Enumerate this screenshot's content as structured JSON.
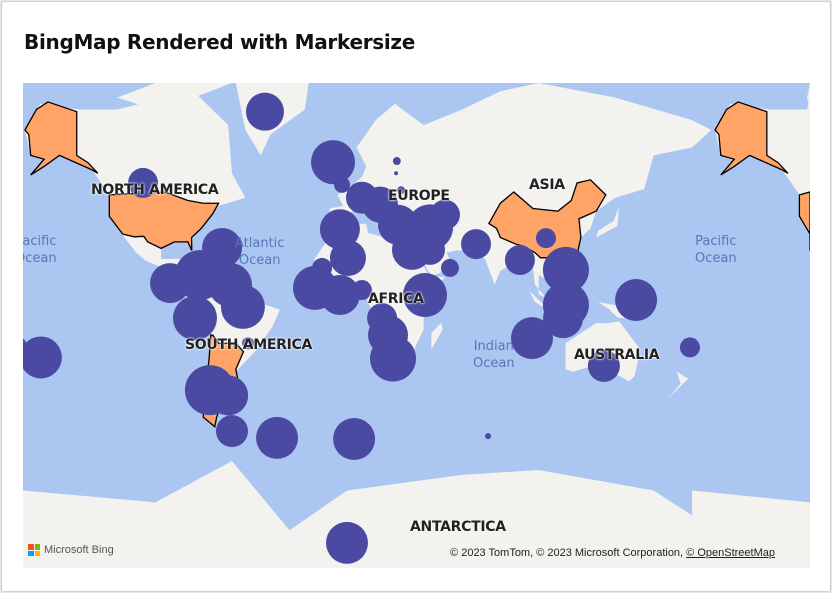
{
  "title": "BingMap Rendered with Markersize",
  "map": {
    "continent_labels": [
      "NORTH AMERICA",
      "EUROPE",
      "ASIA",
      "AFRICA",
      "SOUTH AMERICA",
      "AUSTRALIA",
      "ANTARCTICA"
    ],
    "ocean_labels": [
      "Pacific\nOcean",
      "Atlantic\nOcean",
      "Indian\nOcean",
      "Pacific\nOcean"
    ],
    "highlighted_regions": [
      "United States",
      "Alaska",
      "China",
      "Argentina/Chile"
    ],
    "colors": {
      "water": "#aac6f1",
      "land": "#f3f2ee",
      "highlight": "#ffa466",
      "marker": "#4a4aa3"
    },
    "markers": [
      {
        "lon": -42.8,
        "lat": 69.6,
        "size": 19
      },
      {
        "lon": -106.4,
        "lat": 52,
        "size": 15
      },
      {
        "lon": -7.3,
        "lat": 58.2,
        "size": 22
      },
      {
        "lon": 26,
        "lat": 58.5,
        "size": 4
      },
      {
        "lon": 25.6,
        "lat": 55,
        "size": 2
      },
      {
        "lon": 28.2,
        "lat": 49.6,
        "size": 4
      },
      {
        "lon": -2.6,
        "lat": 51.4,
        "size": 8
      },
      {
        "lon": 7.8,
        "lat": 47,
        "size": 16
      },
      {
        "lon": 17.2,
        "lat": 44.5,
        "size": 18
      },
      {
        "lon": 26.6,
        "lat": 36.5,
        "size": 20
      },
      {
        "lon": 43.3,
        "lat": 35.4,
        "size": 23
      },
      {
        "lon": -3.7,
        "lat": 34.6,
        "size": 20
      },
      {
        "lon": 0.5,
        "lat": 21.4,
        "size": 18
      },
      {
        "lon": 33.9,
        "lat": 25.3,
        "size": 20
      },
      {
        "lon": 43.3,
        "lat": 25.3,
        "size": 15
      },
      {
        "lon": 51.1,
        "lat": 40.6,
        "size": 15
      },
      {
        "lon": -65.2,
        "lat": 26.2,
        "size": 20
      },
      {
        "lon": -76.7,
        "lat": 12.9,
        "size": 25
      },
      {
        "lon": -92.3,
        "lat": 8.8,
        "size": 20
      },
      {
        "lon": -61,
        "lat": 7.8,
        "size": 22
      },
      {
        "lon": -54.3,
        "lat": -3.6,
        "size": 22
      },
      {
        "lon": -79.3,
        "lat": -9.4,
        "size": 22
      },
      {
        "lon": -16.7,
        "lat": 6.3,
        "size": 22
      },
      {
        "lon": -3.7,
        "lat": 2.6,
        "size": 20
      },
      {
        "lon": 7.8,
        "lat": 5.2,
        "size": 10
      },
      {
        "lon": -13,
        "lat": 16.5,
        "size": 10
      },
      {
        "lon": 40.7,
        "lat": 2.6,
        "size": 22
      },
      {
        "lon": 18.3,
        "lat": -9.4,
        "size": 15
      },
      {
        "lon": 21.4,
        "lat": -18,
        "size": 20
      },
      {
        "lon": 24,
        "lat": -29.2,
        "size": 23
      },
      {
        "lon": 53.7,
        "lat": 16.5,
        "size": 9
      },
      {
        "lon": 67.3,
        "lat": 28,
        "size": 15
      },
      {
        "lon": 90.2,
        "lat": 20.4,
        "size": 15
      },
      {
        "lon": 103.8,
        "lat": 30.7,
        "size": 10
      },
      {
        "lon": 114.2,
        "lat": 15.5,
        "size": 23
      },
      {
        "lon": 114.2,
        "lat": -2.6,
        "size": 23
      },
      {
        "lon": 112.7,
        "lat": -9.4,
        "size": 20
      },
      {
        "lon": 96.5,
        "lat": -19.5,
        "size": 21
      },
      {
        "lon": 150.8,
        "lat": 0,
        "size": 21
      },
      {
        "lon": 134,
        "lat": -32.5,
        "size": 16
      },
      {
        "lon": 178.9,
        "lat": -24,
        "size": 10
      },
      {
        "lon": -170.1,
        "lat": -22,
        "size": 5
      },
      {
        "lon": -159.7,
        "lat": -28.7,
        "size": 21
      },
      {
        "lon": -71.5,
        "lat": -42.5,
        "size": 25
      },
      {
        "lon": -62,
        "lat": -44.5,
        "size": 20
      },
      {
        "lon": -60,
        "lat": -56.3,
        "size": 16
      },
      {
        "lon": -36.5,
        "lat": -58.2,
        "size": 21
      },
      {
        "lon": 3.7,
        "lat": -58.5,
        "size": 21
      },
      {
        "lon": 0,
        "lat": -77.5,
        "size": 21
      },
      {
        "lon": -51.6,
        "lat": -22,
        "size": 6
      },
      {
        "lon": 73.6,
        "lat": -57.7,
        "size": 3
      }
    ]
  },
  "footer": {
    "logo_text": "Microsoft Bing",
    "attribution": "© 2023 TomTom, © 2023 Microsoft Corporation, ",
    "osm_link": "© OpenStreetMap"
  }
}
